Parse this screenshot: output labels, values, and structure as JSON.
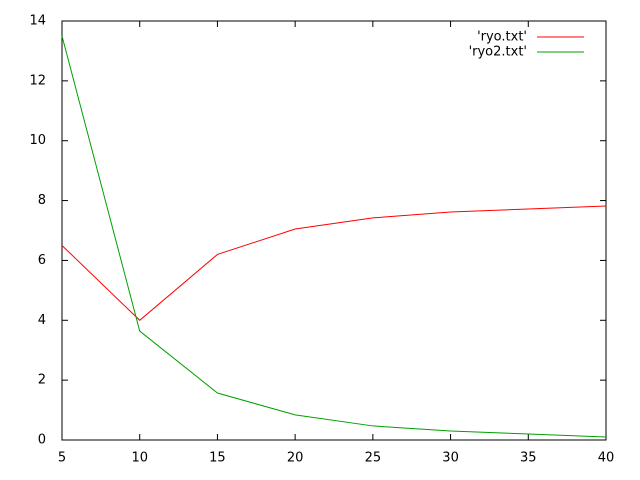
{
  "chart_data": {
    "type": "line",
    "x": [
      5,
      10,
      15,
      20,
      25,
      30,
      35,
      40
    ],
    "series": [
      {
        "name": "'ryo.txt'",
        "color": "#ff0000",
        "values": [
          6.5,
          4.0,
          6.2,
          7.05,
          7.42,
          7.62,
          7.72,
          7.82
        ]
      },
      {
        "name": "'ryo2.txt'",
        "color": "#00a000",
        "values": [
          13.5,
          3.64,
          1.57,
          0.84,
          0.47,
          0.3,
          0.2,
          0.1
        ]
      }
    ],
    "xlim": [
      5,
      40
    ],
    "xticks": [
      5,
      10,
      15,
      20,
      25,
      30,
      35,
      40
    ],
    "ylim": [
      0,
      14
    ],
    "yticks": [
      0,
      2,
      4,
      6,
      8,
      10,
      12,
      14
    ],
    "grid": false,
    "legend": "top-right"
  }
}
